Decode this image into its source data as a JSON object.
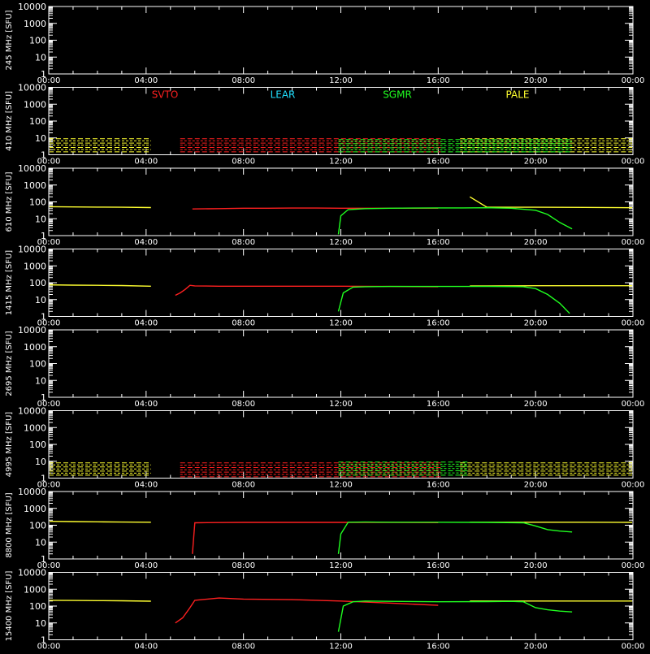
{
  "colors": {
    "background": "#000000",
    "axis": "#ffffff",
    "SVTO": "#ff2020",
    "LEAR": "#20e0ff",
    "SGMR": "#20ff20",
    "PALE": "#ffff30"
  },
  "time_ticks": [
    "00:00",
    "04:00",
    "08:00",
    "12:00",
    "16:00",
    "20:00",
    "00:00"
  ],
  "y_ticks": [
    "1",
    "10",
    "100",
    "1000",
    "10000"
  ],
  "legend": [
    "SVTO",
    "LEAR",
    "SGMR",
    "PALE"
  ],
  "chart_data": [
    {
      "type": "line",
      "ylabel": "245 MHz [SFU]",
      "ylim": [
        1,
        10000
      ],
      "yscale": "log",
      "xlim_hours": [
        0,
        24
      ],
      "series": []
    },
    {
      "type": "scatter",
      "ylabel": "410 MHz [SFU]",
      "ylim": [
        1,
        10000
      ],
      "yscale": "log",
      "xlim_hours": [
        0,
        24
      ],
      "series": [
        {
          "name": "PALE",
          "kind": "band",
          "ranges": [
            [
              0,
              4.2
            ],
            [
              16.9,
              24
            ]
          ],
          "low": 1.5,
          "high": 9
        },
        {
          "name": "SVTO",
          "kind": "band",
          "ranges": [
            [
              5.4,
              16.1
            ]
          ],
          "low": 1.5,
          "high": 9
        },
        {
          "name": "SGMR",
          "kind": "band",
          "ranges": [
            [
              11.9,
              21.5
            ]
          ],
          "low": 1.5,
          "high": 8
        }
      ]
    },
    {
      "type": "line",
      "ylabel": "610 MHz [SFU]",
      "ylim": [
        1,
        10000
      ],
      "yscale": "log",
      "xlim_hours": [
        0,
        24
      ],
      "series": [
        {
          "name": "PALE",
          "x": [
            0.0,
            1.0,
            2.0,
            3.0,
            4.2,
            17.3,
            18.0,
            20.0,
            22.0,
            24.0
          ],
          "y": [
            52,
            50,
            49,
            48,
            46,
            200,
            48,
            48,
            47,
            45
          ],
          "breaks_after": [
            4
          ]
        },
        {
          "name": "SVTO",
          "x": [
            5.9,
            7.0,
            8.0,
            9.0,
            10.0,
            11.0,
            12.0,
            14.0,
            16.0
          ],
          "y": [
            38,
            40,
            42,
            42,
            43,
            43,
            42,
            42,
            42
          ],
          "breaks_after": []
        },
        {
          "name": "SGMR",
          "x": [
            11.9,
            12.0,
            12.3,
            13.0,
            14.0,
            15.0,
            16.0,
            17.0,
            18.0,
            19.0,
            20.0,
            20.5,
            21.0,
            21.5
          ],
          "y": [
            1.2,
            15,
            35,
            40,
            42,
            43,
            44,
            44,
            45,
            42,
            32,
            18,
            6,
            2.5
          ],
          "breaks_after": []
        }
      ]
    },
    {
      "type": "line",
      "ylabel": "1415 MHz [SFU]",
      "ylim": [
        1,
        10000
      ],
      "yscale": "log",
      "xlim_hours": [
        0,
        24
      ],
      "series": [
        {
          "name": "PALE",
          "x": [
            0.0,
            1.0,
            2.0,
            3.0,
            4.2,
            17.3,
            18.0,
            20.0,
            22.0,
            24.0
          ],
          "y": [
            75,
            72,
            70,
            68,
            62,
            64,
            65,
            66,
            66,
            66
          ],
          "breaks_after": [
            4
          ]
        },
        {
          "name": "SVTO",
          "x": [
            5.2,
            5.4,
            5.6,
            5.8,
            6.0,
            7.0,
            8.0,
            10.0,
            12.0,
            14.0,
            16.0
          ],
          "y": [
            18,
            25,
            40,
            70,
            65,
            62,
            62,
            62,
            62,
            60,
            58
          ],
          "breaks_after": []
        },
        {
          "name": "SGMR",
          "x": [
            11.9,
            12.1,
            12.5,
            13.0,
            14.0,
            16.0,
            18.0,
            19.5,
            20.0,
            20.5,
            21.0,
            21.4
          ],
          "y": [
            2,
            25,
            55,
            58,
            60,
            60,
            60,
            58,
            45,
            20,
            6,
            1.5
          ],
          "breaks_after": []
        }
      ]
    },
    {
      "type": "line",
      "ylabel": "2695 MHz [SFU]",
      "ylim": [
        1,
        10000
      ],
      "yscale": "log",
      "xlim_hours": [
        0,
        24
      ],
      "series": [
        {
          "name": "SVTO",
          "x": [
            6.0,
            10.8
          ],
          "y": [
            1.02,
            1.02
          ],
          "breaks_after": []
        },
        {
          "name": "SGMR",
          "x": [
            12.0,
            16.0
          ],
          "y": [
            1.02,
            1.02
          ],
          "breaks_after": []
        }
      ]
    },
    {
      "type": "scatter",
      "ylabel": "4995 MHz [SFU]",
      "ylim": [
        1,
        10000
      ],
      "yscale": "log",
      "xlim_hours": [
        0,
        24
      ],
      "series": [
        {
          "name": "PALE",
          "kind": "band",
          "ranges": [
            [
              0,
              4.2
            ],
            [
              16.9,
              24
            ]
          ],
          "low": 1.5,
          "high": 8
        },
        {
          "name": "SVTO",
          "kind": "band",
          "ranges": [
            [
              5.4,
              16.1
            ]
          ],
          "low": 1.2,
          "high": 8
        },
        {
          "name": "SGMR",
          "kind": "band",
          "ranges": [
            [
              11.9,
              17.2
            ]
          ],
          "low": 1.5,
          "high": 9
        }
      ]
    },
    {
      "type": "line",
      "ylabel": "8800 MHz [SFU]",
      "ylim": [
        1,
        10000
      ],
      "yscale": "log",
      "xlim_hours": [
        0,
        24
      ],
      "series": [
        {
          "name": "PALE",
          "x": [
            0.0,
            1.0,
            2.0,
            3.0,
            4.2,
            17.3,
            18.0,
            20.0,
            22.0,
            24.0
          ],
          "y": [
            170,
            165,
            160,
            155,
            150,
            150,
            150,
            150,
            150,
            148
          ],
          "breaks_after": [
            4
          ]
        },
        {
          "name": "SVTO",
          "x": [
            5.9,
            6.0,
            7.0,
            8.0,
            10.0,
            12.0,
            14.0,
            16.0
          ],
          "y": [
            2,
            140,
            145,
            148,
            148,
            148,
            148,
            142
          ],
          "breaks_after": []
        },
        {
          "name": "SGMR",
          "x": [
            11.9,
            12.0,
            12.3,
            13.0,
            14.0,
            16.0,
            18.0,
            19.5,
            20.0,
            20.5,
            21.0,
            21.5
          ],
          "y": [
            2,
            30,
            150,
            155,
            150,
            150,
            148,
            140,
            90,
            55,
            45,
            40
          ],
          "breaks_after": []
        }
      ]
    },
    {
      "type": "line",
      "ylabel": "15400 MHz [SFU]",
      "ylim": [
        1,
        10000
      ],
      "yscale": "log",
      "xlim_hours": [
        0,
        24
      ],
      "series": [
        {
          "name": "PALE",
          "x": [
            0.0,
            1.0,
            2.0,
            3.0,
            4.2,
            17.3,
            18.0,
            20.0,
            22.0,
            23.5,
            24.0
          ],
          "y": [
            220,
            215,
            210,
            205,
            195,
            200,
            200,
            200,
            200,
            200,
            200
          ],
          "breaks_after": [
            4
          ]
        },
        {
          "name": "SVTO",
          "x": [
            5.2,
            5.5,
            5.8,
            6.0,
            7.0,
            8.0,
            10.0,
            12.0,
            14.0,
            16.0
          ],
          "y": [
            10,
            20,
            80,
            220,
            300,
            260,
            240,
            200,
            150,
            110
          ],
          "breaks_after": []
        },
        {
          "name": "SGMR",
          "x": [
            11.9,
            12.1,
            12.5,
            13.0,
            14.0,
            16.0,
            18.0,
            19.0,
            19.5,
            20.0,
            20.5,
            21.0,
            21.5
          ],
          "y": [
            3,
            100,
            180,
            200,
            190,
            180,
            185,
            190,
            180,
            80,
            60,
            50,
            45
          ],
          "breaks_after": []
        }
      ]
    }
  ]
}
